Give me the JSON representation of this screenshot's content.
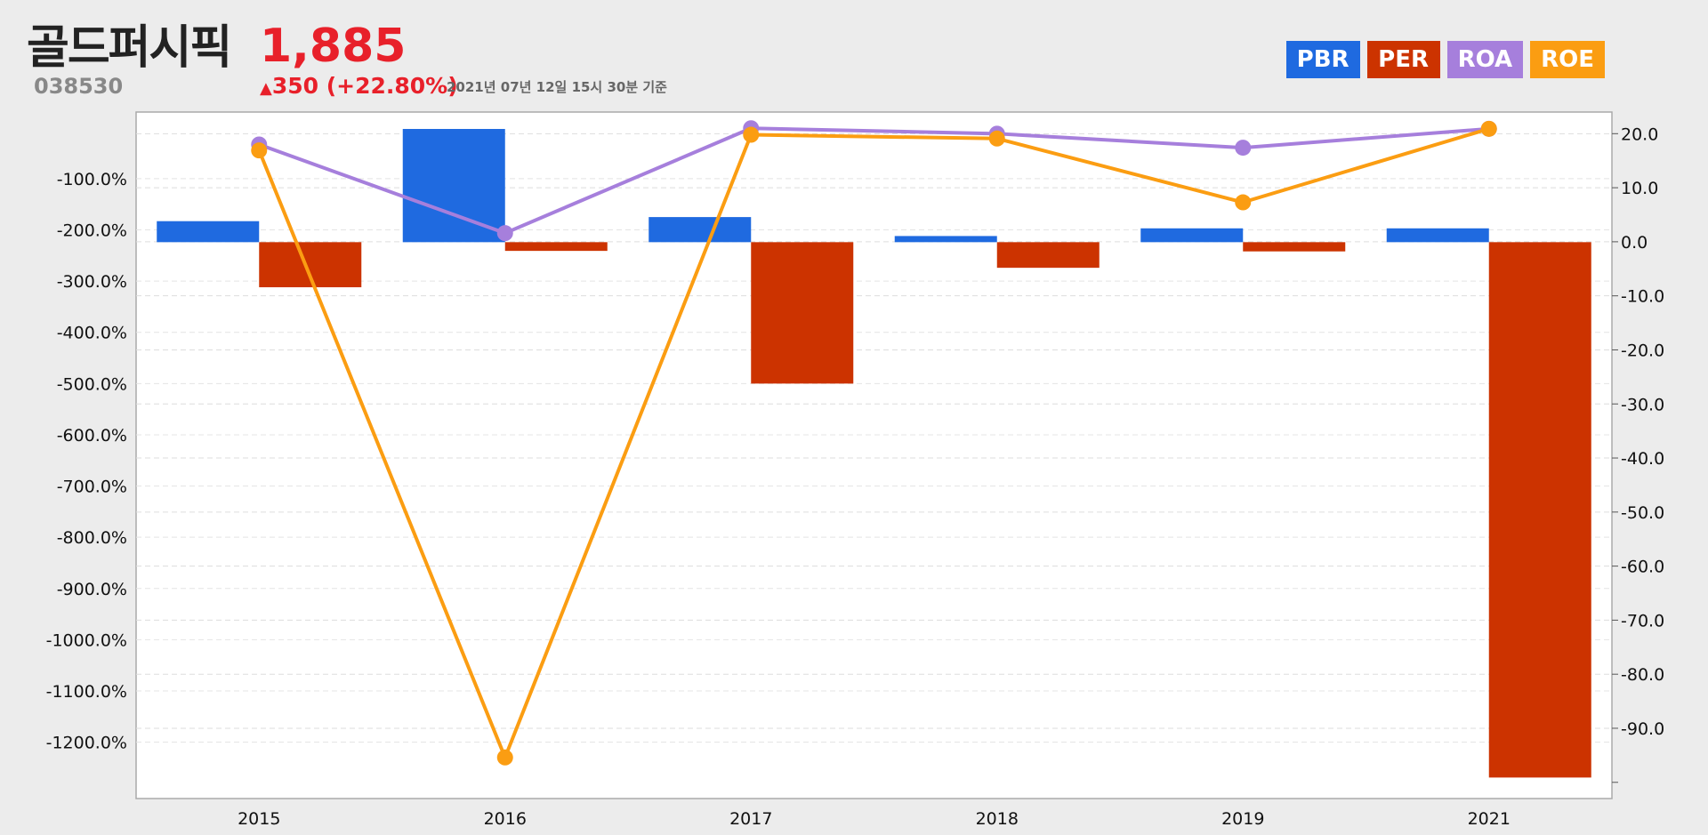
{
  "header": {
    "company_name": "골드퍼시픽",
    "price": "1,885",
    "ticker": "038530",
    "change_arrow": "▲",
    "change": "350 (+22.80%)",
    "timestamp": "2021년 07년 12일 15시 30분 기준"
  },
  "legend": [
    {
      "label": "PBR",
      "color": "#1f6ae0"
    },
    {
      "label": "PER",
      "color": "#cc3300"
    },
    {
      "label": "ROA",
      "color": "#a67fdc"
    },
    {
      "label": "ROE",
      "color": "#fb9d12"
    }
  ],
  "chart_data": {
    "type": "bar",
    "categories": [
      "2015",
      "2016",
      "2017",
      "2018",
      "2019",
      "2021"
    ],
    "left_axis": {
      "ticks": [
        "-100.0%",
        "-200.0%",
        "-300.0%",
        "-400.0%",
        "-500.0%",
        "-600.0%",
        "-700.0%",
        "-800.0%",
        "-900.0%",
        "-1000.0%",
        "-1100.0%",
        "-1200.0%"
      ],
      "tick_values": [
        -100,
        -200,
        -300,
        -400,
        -500,
        -600,
        -700,
        -800,
        -900,
        -1000,
        -1100,
        -1200
      ],
      "range": [
        -1310,
        30
      ],
      "zero": -224
    },
    "right_axis": {
      "ticks": [
        "20.0",
        "10.0",
        "0.0",
        "-10.0",
        "-20.0",
        "-30.0",
        "-40.0",
        "-50.0",
        "-60.0",
        "-70.0",
        "-80.0",
        "-90.0"
      ],
      "tick_values": [
        20,
        10,
        0,
        -10,
        -20,
        -30,
        -40,
        -50,
        -60,
        -70,
        -80,
        -90
      ],
      "range": [
        -103,
        24
      ]
    },
    "bar_series": [
      {
        "name": "PBR",
        "color": "#1f6ae0",
        "values": [
          41,
          221,
          49,
          12,
          27,
          27
        ]
      },
      {
        "name": "PER",
        "color": "#cc3300",
        "values": [
          -88,
          -17,
          -276,
          -50,
          -18,
          -1045
        ]
      }
    ],
    "line_series": [
      {
        "name": "ROA",
        "color": "#a67fdc",
        "values": [
          18.0,
          1.6,
          21.0,
          20.0,
          17.4,
          20.9
        ]
      },
      {
        "name": "ROE",
        "color": "#fb9d12",
        "values": [
          16.9,
          -95.4,
          19.8,
          19.1,
          7.3,
          20.9
        ]
      }
    ],
    "grid": true
  }
}
